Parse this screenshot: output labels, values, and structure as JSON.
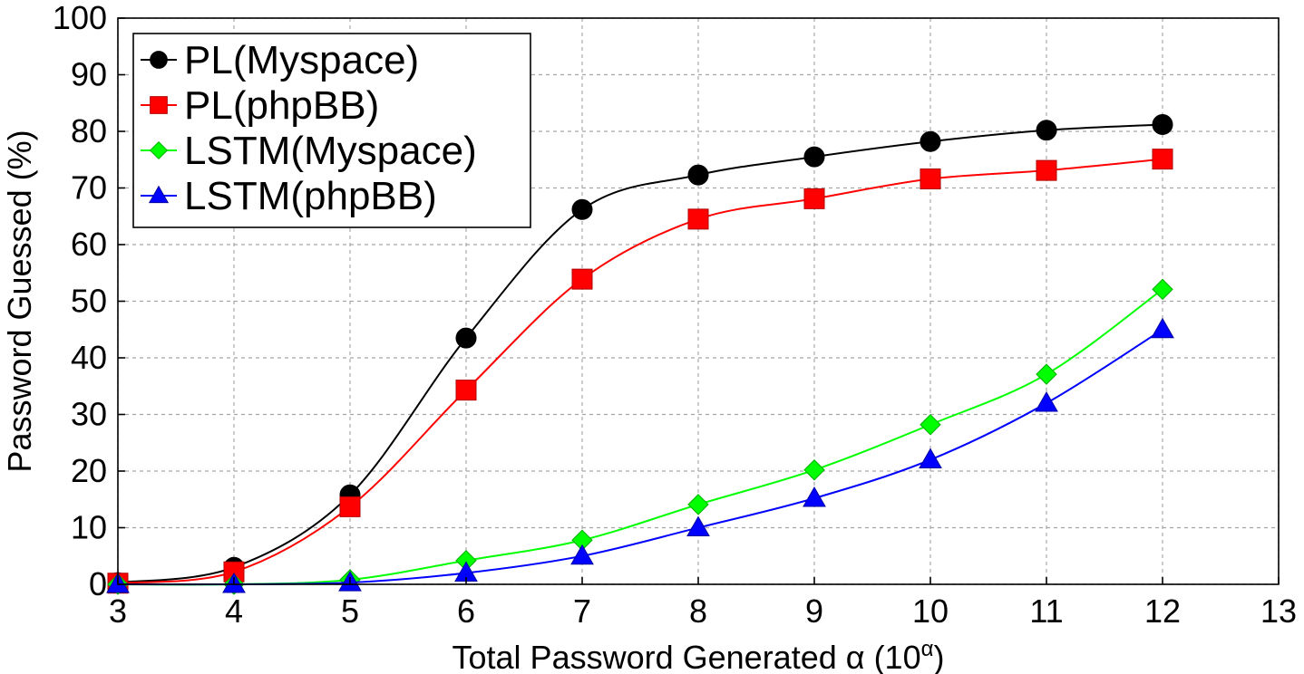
{
  "chart_data": {
    "type": "line",
    "title": "",
    "xlabel": "Total Password Generated α (10",
    "xlabel_sup": "α",
    "xlabel_close": ")",
    "ylabel": "Password Guessed (%)",
    "xlim": [
      3,
      13
    ],
    "ylim": [
      0,
      100
    ],
    "xticks": [
      3,
      4,
      5,
      6,
      7,
      8,
      9,
      10,
      11,
      12,
      13
    ],
    "yticks": [
      0,
      10,
      20,
      30,
      40,
      50,
      60,
      70,
      80,
      90,
      100
    ],
    "grid": true,
    "legend_position": "top-left",
    "series": [
      {
        "name": "PL(Myspace)",
        "color": "#000000",
        "marker": "circle",
        "x": [
          3,
          4,
          5,
          6,
          7,
          8,
          9,
          10,
          11,
          12
        ],
        "values": [
          0.3,
          3,
          15.8,
          43.5,
          66.2,
          72.3,
          75.5,
          78.2,
          80.2,
          81.2
        ]
      },
      {
        "name": "PL(phpBB)",
        "color": "#ff0000",
        "marker": "square",
        "x": [
          3,
          4,
          5,
          6,
          7,
          8,
          9,
          10,
          11,
          12
        ],
        "values": [
          0.2,
          2.2,
          13.7,
          34.3,
          53.9,
          64.5,
          68.1,
          71.6,
          73.1,
          75.1
        ]
      },
      {
        "name": "LSTM(Myspace)",
        "color": "#00ff00",
        "marker": "diamond",
        "x": [
          3,
          4,
          5,
          6,
          7,
          8,
          9,
          10,
          11,
          12
        ],
        "values": [
          0,
          0,
          0.8,
          4.2,
          7.8,
          14.1,
          20.2,
          28.2,
          37.1,
          52.1
        ]
      },
      {
        "name": "LSTM(phpBB)",
        "color": "#0000ff",
        "marker": "triangle",
        "x": [
          3,
          4,
          5,
          6,
          7,
          8,
          9,
          10,
          11,
          12
        ],
        "values": [
          0,
          0,
          0.3,
          2,
          5,
          10,
          15.2,
          22,
          32,
          45
        ]
      }
    ]
  }
}
